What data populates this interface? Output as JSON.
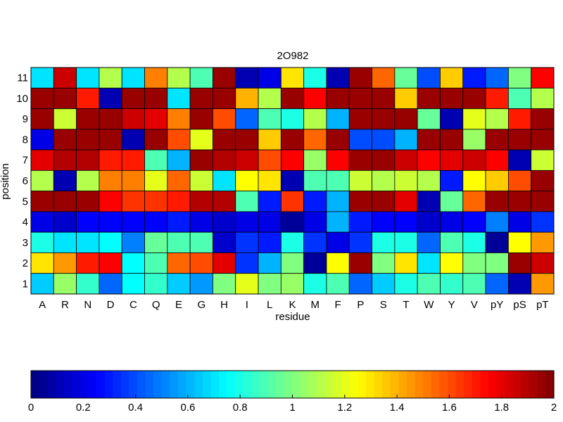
{
  "chart_data": {
    "type": "heatmap",
    "title": "2O982",
    "xlabel": "residue",
    "ylabel": "position",
    "x_categories": [
      "A",
      "R",
      "N",
      "D",
      "C",
      "Q",
      "E",
      "G",
      "H",
      "I",
      "L",
      "K",
      "M",
      "F",
      "P",
      "S",
      "T",
      "W",
      "Y",
      "V",
      "pY",
      "pS",
      "pT"
    ],
    "y_categories": [
      "11",
      "10",
      "9",
      "8",
      "7",
      "6",
      "5",
      "4",
      "3",
      "2",
      "1"
    ],
    "values": [
      [
        0.7,
        1.85,
        0.7,
        1.1,
        0.7,
        1.5,
        1.1,
        0.9,
        1.95,
        0.1,
        0.2,
        1.3,
        0.8,
        0.1,
        1.95,
        1.55,
        0.95,
        0.4,
        1.35,
        0.3,
        0.45,
        1.0,
        1.75
      ],
      [
        1.95,
        1.95,
        1.7,
        0.1,
        1.95,
        1.95,
        0.7,
        1.95,
        1.95,
        1.4,
        1.1,
        1.95,
        1.75,
        1.95,
        1.95,
        1.95,
        1.35,
        1.95,
        1.95,
        1.95,
        1.7,
        0.9,
        1.1
      ],
      [
        1.95,
        1.15,
        1.95,
        1.95,
        1.85,
        1.8,
        1.5,
        1.95,
        1.6,
        0.45,
        0.9,
        0.8,
        1.1,
        0.6,
        1.95,
        1.95,
        1.95,
        0.95,
        0.1,
        1.2,
        1.1,
        1.7,
        1.95
      ],
      [
        0.2,
        1.95,
        1.95,
        1.95,
        0.1,
        1.95,
        1.6,
        1.2,
        1.95,
        1.95,
        1.35,
        1.95,
        1.55,
        1.95,
        0.4,
        0.4,
        0.6,
        1.95,
        1.95,
        1.05,
        1.95,
        1.95,
        1.95
      ],
      [
        1.8,
        1.9,
        1.9,
        1.7,
        1.7,
        0.9,
        0.6,
        1.95,
        1.9,
        1.85,
        1.6,
        1.75,
        1.05,
        1.75,
        1.95,
        1.95,
        1.85,
        1.75,
        1.8,
        1.85,
        1.75,
        0.1,
        1.15
      ],
      [
        1.1,
        0.1,
        1.1,
        1.5,
        1.5,
        1.2,
        1.55,
        1.15,
        0.7,
        1.25,
        1.3,
        0.1,
        0.9,
        0.9,
        1.15,
        1.1,
        1.15,
        1.1,
        0.3,
        1.25,
        1.35,
        1.6,
        1.95
      ],
      [
        1.95,
        1.95,
        1.95,
        1.75,
        1.65,
        1.65,
        1.7,
        1.9,
        1.9,
        0.9,
        0.3,
        1.65,
        0.3,
        0.6,
        1.95,
        1.95,
        1.8,
        0.1,
        0.95,
        1.55,
        1.95,
        1.95,
        1.95
      ],
      [
        0.2,
        0.15,
        0.25,
        0.25,
        0.25,
        0.25,
        0.3,
        0.2,
        0.15,
        0.2,
        0.2,
        0.05,
        0.2,
        0.6,
        0.3,
        0.25,
        0.25,
        0.15,
        0.2,
        0.25,
        0.5,
        0.2,
        0.35
      ],
      [
        0.8,
        0.7,
        0.7,
        0.75,
        0.5,
        0.95,
        0.9,
        0.9,
        0.15,
        0.35,
        0.3,
        0.8,
        0.35,
        0.2,
        0.35,
        0.8,
        0.8,
        0.45,
        0.9,
        0.8,
        0.05,
        1.25,
        1.45
      ],
      [
        1.3,
        1.45,
        1.7,
        1.75,
        0.75,
        0.9,
        1.55,
        1.6,
        1.8,
        0.35,
        0.6,
        1.0,
        0.05,
        1.25,
        1.95,
        1.0,
        1.3,
        0.7,
        1.25,
        1.0,
        1.0,
        1.95,
        1.85
      ],
      [
        0.65,
        1.05,
        0.85,
        0.45,
        0.75,
        0.85,
        0.65,
        0.55,
        1.0,
        1.2,
        1.0,
        1.05,
        0.8,
        0.9,
        0.45,
        0.65,
        0.8,
        0.9,
        0.85,
        0.9,
        0.45,
        0.1,
        1.45
      ]
    ],
    "colorbar": {
      "colormap": "jet",
      "range": [
        0,
        2
      ],
      "ticks": [
        "0",
        "0.2",
        "0.4",
        "0.6",
        "0.8",
        "1",
        "1.2",
        "1.4",
        "1.6",
        "1.8",
        "2"
      ]
    },
    "grid": true,
    "legend": "colorbar-bottom"
  }
}
